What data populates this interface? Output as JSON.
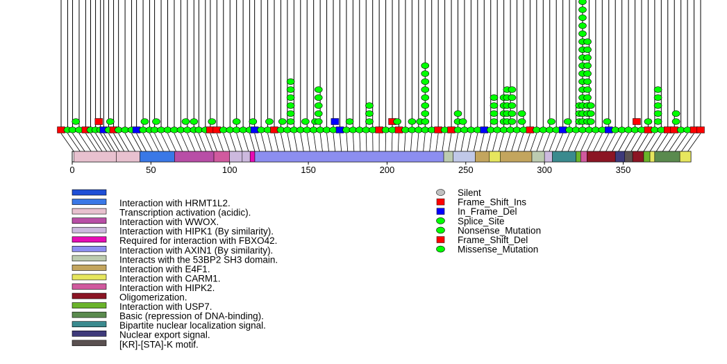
{
  "chart_data": {
    "type": "lollipop",
    "title": "",
    "xlabel": "",
    "ylabel": "",
    "xlim": [
      0,
      393
    ],
    "x_ticks": [
      0,
      50,
      100,
      150,
      200,
      250,
      300,
      350
    ],
    "mutation_types": [
      {
        "name": "Silent",
        "color": "#c0c0c0",
        "shape": "ellipse"
      },
      {
        "name": "Frame_Shift_Ins",
        "color": "#ff0000",
        "shape": "rect"
      },
      {
        "name": "In_Frame_Del",
        "color": "#0000ff",
        "shape": "rect"
      },
      {
        "name": "Splice_Site",
        "color": "#00ff00",
        "shape": "ellipse"
      },
      {
        "name": "Nonsense_Mutation",
        "color": "#00ff00",
        "shape": "ellipse"
      },
      {
        "name": "Frame_Shift_Del",
        "color": "#ff0000",
        "shape": "rect"
      },
      {
        "name": "Missense_Mutation",
        "color": "#00ff00",
        "shape": "ellipse"
      }
    ],
    "regions": [
      {
        "name": "Interaction with HRMT1L2.",
        "color": "#1f4fd6"
      },
      {
        "name": "Transcription activation (acidic).",
        "color": "#3a78e6"
      },
      {
        "name": "Interaction with WWOX.",
        "color": "#e8c1cf"
      },
      {
        "name": "Interaction with HIPK1 (By similarity).",
        "color": "#b84ea6"
      },
      {
        "name": "Required for interaction with FBXO42.",
        "color": "#ccb9de"
      },
      {
        "name": "Interaction with AXIN1 (By similarity).",
        "color": "#e60cb4"
      },
      {
        "name": "Interacts with the 53BP2 SH3 domain.",
        "color": "#8c8ef0"
      },
      {
        "name": "Interaction with E4F1.",
        "color": "#bccbb0"
      },
      {
        "name": "Interaction with CARM1.",
        "color": "#c3a55e"
      },
      {
        "name": "Interaction with HIPK2.",
        "color": "#e6e65e"
      },
      {
        "name": "Oligomerization.",
        "color": "#d05a9e"
      },
      {
        "name": "Interaction with USP7.",
        "color": "#8b1524"
      },
      {
        "name": "Basic (repression of DNA-binding).",
        "color": "#6ab32a"
      },
      {
        "name": "Bipartite nuclear localization signal.",
        "color": "#5a8a4e"
      },
      {
        "name": "Nuclear export signal.",
        "color": "#3a8a8e"
      },
      {
        "name": "[KR]-[STA]-K motif.",
        "color": "#3e3a7a"
      }
    ],
    "extra_region_colors": [
      "#5a5050"
    ],
    "domain_segments": [
      {
        "start": 1,
        "end": 28,
        "color": "#e8c1cf"
      },
      {
        "start": 28,
        "end": 43,
        "color": "#e8c1cf"
      },
      {
        "start": 43,
        "end": 65,
        "color": "#3a78e6"
      },
      {
        "start": 65,
        "end": 90,
        "color": "#b84ea6"
      },
      {
        "start": 90,
        "end": 100,
        "color": "#d05a9e"
      },
      {
        "start": 100,
        "end": 108,
        "color": "#ccb9de"
      },
      {
        "start": 108,
        "end": 113,
        "color": "#ccb9de"
      },
      {
        "start": 113,
        "end": 116,
        "color": "#e60cb4"
      },
      {
        "start": 116,
        "end": 236,
        "color": "#8c8ef0"
      },
      {
        "start": 236,
        "end": 242,
        "color": "#bccbb0"
      },
      {
        "start": 242,
        "end": 256,
        "color": "#c0c8e8"
      },
      {
        "start": 256,
        "end": 265,
        "color": "#c3a55e"
      },
      {
        "start": 265,
        "end": 272,
        "color": "#e6e65e"
      },
      {
        "start": 272,
        "end": 292,
        "color": "#c3a55e"
      },
      {
        "start": 292,
        "end": 300,
        "color": "#bccbb0"
      },
      {
        "start": 300,
        "end": 305,
        "color": "#ccb9de"
      },
      {
        "start": 305,
        "end": 320,
        "color": "#3a8a8e"
      },
      {
        "start": 320,
        "end": 323,
        "color": "#6ab32a"
      },
      {
        "start": 323,
        "end": 327,
        "color": "#d05a9e"
      },
      {
        "start": 327,
        "end": 345,
        "color": "#8b1524"
      },
      {
        "start": 345,
        "end": 351,
        "color": "#3e3a7a"
      },
      {
        "start": 351,
        "end": 356,
        "color": "#5a5050"
      },
      {
        "start": 356,
        "end": 363,
        "color": "#8b1524"
      },
      {
        "start": 363,
        "end": 367,
        "color": "#6ab32a"
      },
      {
        "start": 367,
        "end": 370,
        "color": "#e6e65e"
      },
      {
        "start": 370,
        "end": 386,
        "color": "#5a8a4e"
      },
      {
        "start": 386,
        "end": 393,
        "color": "#e6e65e"
      }
    ],
    "baseline_mutations": [
      {
        "pos": 1,
        "type": "Frame_Shift_Del"
      },
      {
        "pos": 5,
        "type": "Missense_Mutation"
      },
      {
        "pos": 8,
        "type": "Missense_Mutation"
      },
      {
        "pos": 12,
        "type": "Missense_Mutation"
      },
      {
        "pos": 16,
        "type": "Frame_Shift_Del"
      },
      {
        "pos": 19,
        "type": "Missense_Mutation"
      },
      {
        "pos": 22,
        "type": "Missense_Mutation"
      },
      {
        "pos": 25,
        "type": "Missense_Mutation"
      },
      {
        "pos": 27,
        "type": "In_Frame_Del"
      },
      {
        "pos": 30,
        "type": "Missense_Mutation"
      },
      {
        "pos": 33,
        "type": "Frame_Shift_Del"
      },
      {
        "pos": 36,
        "type": "Missense_Mutation"
      },
      {
        "pos": 40,
        "type": "Missense_Mutation"
      },
      {
        "pos": 44,
        "type": "Missense_Mutation"
      },
      {
        "pos": 47,
        "type": "In_Frame_Del"
      },
      {
        "pos": 51,
        "type": "Missense_Mutation"
      },
      {
        "pos": 55,
        "type": "Missense_Mutation"
      },
      {
        "pos": 58,
        "type": "Missense_Mutation"
      },
      {
        "pos": 62,
        "type": "Missense_Mutation"
      },
      {
        "pos": 66,
        "type": "Missense_Mutation"
      },
      {
        "pos": 70,
        "type": "Missense_Mutation"
      },
      {
        "pos": 74,
        "type": "Missense_Mutation"
      },
      {
        "pos": 78,
        "type": "Missense_Mutation"
      },
      {
        "pos": 82,
        "type": "Missense_Mutation"
      },
      {
        "pos": 85,
        "type": "Missense_Mutation"
      },
      {
        "pos": 89,
        "type": "Missense_Mutation"
      },
      {
        "pos": 92,
        "type": "Frame_Shift_Del"
      },
      {
        "pos": 96,
        "type": "Frame_Shift_Del"
      },
      {
        "pos": 100,
        "type": "Missense_Mutation"
      },
      {
        "pos": 104,
        "type": "Missense_Mutation"
      },
      {
        "pos": 108,
        "type": "Missense_Mutation"
      },
      {
        "pos": 112,
        "type": "Missense_Mutation"
      },
      {
        "pos": 116,
        "type": "Missense_Mutation"
      },
      {
        "pos": 119,
        "type": "In_Frame_Del"
      },
      {
        "pos": 123,
        "type": "Missense_Mutation"
      },
      {
        "pos": 127,
        "type": "Missense_Mutation"
      },
      {
        "pos": 131,
        "type": "Frame_Shift_Del"
      },
      {
        "pos": 135,
        "type": "Missense_Mutation"
      },
      {
        "pos": 139,
        "type": "Missense_Mutation"
      },
      {
        "pos": 143,
        "type": "Missense_Mutation"
      },
      {
        "pos": 147,
        "type": "Missense_Mutation"
      },
      {
        "pos": 151,
        "type": "Missense_Mutation"
      },
      {
        "pos": 155,
        "type": "Missense_Mutation"
      },
      {
        "pos": 159,
        "type": "Missense_Mutation"
      },
      {
        "pos": 163,
        "type": "Missense_Mutation"
      },
      {
        "pos": 167,
        "type": "Missense_Mutation"
      },
      {
        "pos": 171,
        "type": "In_Frame_Del"
      },
      {
        "pos": 175,
        "type": "Missense_Mutation"
      },
      {
        "pos": 179,
        "type": "Missense_Mutation"
      },
      {
        "pos": 183,
        "type": "Missense_Mutation"
      },
      {
        "pos": 187,
        "type": "Missense_Mutation"
      },
      {
        "pos": 191,
        "type": "Missense_Mutation"
      },
      {
        "pos": 195,
        "type": "Frame_Shift_Del"
      },
      {
        "pos": 199,
        "type": "Missense_Mutation"
      },
      {
        "pos": 203,
        "type": "Missense_Mutation"
      },
      {
        "pos": 207,
        "type": "Frame_Shift_Del"
      },
      {
        "pos": 211,
        "type": "Missense_Mutation"
      },
      {
        "pos": 215,
        "type": "Missense_Mutation"
      },
      {
        "pos": 219,
        "type": "Missense_Mutation"
      },
      {
        "pos": 223,
        "type": "Missense_Mutation"
      },
      {
        "pos": 227,
        "type": "Missense_Mutation"
      },
      {
        "pos": 231,
        "type": "Frame_Shift_Del"
      },
      {
        "pos": 235,
        "type": "Missense_Mutation"
      },
      {
        "pos": 239,
        "type": "Frame_Shift_Del"
      },
      {
        "pos": 243,
        "type": "Missense_Mutation"
      },
      {
        "pos": 247,
        "type": "Missense_Mutation"
      },
      {
        "pos": 251,
        "type": "Missense_Mutation"
      },
      {
        "pos": 255,
        "type": "Missense_Mutation"
      },
      {
        "pos": 259,
        "type": "In_Frame_Del"
      },
      {
        "pos": 263,
        "type": "Missense_Mutation"
      },
      {
        "pos": 267,
        "type": "Missense_Mutation"
      },
      {
        "pos": 271,
        "type": "Missense_Mutation"
      },
      {
        "pos": 275,
        "type": "Missense_Mutation"
      },
      {
        "pos": 279,
        "type": "Missense_Mutation"
      },
      {
        "pos": 283,
        "type": "Missense_Mutation"
      },
      {
        "pos": 287,
        "type": "Frame_Shift_Del"
      },
      {
        "pos": 291,
        "type": "Missense_Mutation"
      },
      {
        "pos": 295,
        "type": "Missense_Mutation"
      },
      {
        "pos": 299,
        "type": "Missense_Mutation"
      },
      {
        "pos": 303,
        "type": "Missense_Mutation"
      },
      {
        "pos": 307,
        "type": "In_Frame_Del"
      },
      {
        "pos": 311,
        "type": "Missense_Mutation"
      },
      {
        "pos": 315,
        "type": "Missense_Mutation"
      },
      {
        "pos": 319,
        "type": "Missense_Mutation"
      },
      {
        "pos": 323,
        "type": "Missense_Mutation"
      },
      {
        "pos": 327,
        "type": "Missense_Mutation"
      },
      {
        "pos": 331,
        "type": "Missense_Mutation"
      },
      {
        "pos": 335,
        "type": "In_Frame_Del"
      },
      {
        "pos": 339,
        "type": "Missense_Mutation"
      },
      {
        "pos": 343,
        "type": "Missense_Mutation"
      },
      {
        "pos": 347,
        "type": "Missense_Mutation"
      },
      {
        "pos": 351,
        "type": "Missense_Mutation"
      },
      {
        "pos": 355,
        "type": "Missense_Mutation"
      },
      {
        "pos": 359,
        "type": "Frame_Shift_Del"
      },
      {
        "pos": 363,
        "type": "Missense_Mutation"
      },
      {
        "pos": 367,
        "type": "Missense_Mutation"
      },
      {
        "pos": 371,
        "type": "Frame_Shift_Del"
      },
      {
        "pos": 375,
        "type": "Frame_Shift_Del"
      },
      {
        "pos": 379,
        "type": "Missense_Mutation"
      },
      {
        "pos": 383,
        "type": "Missense_Mutation"
      },
      {
        "pos": 387,
        "type": "Frame_Shift_Del"
      },
      {
        "pos": 391,
        "type": "Frame_Shift_Del"
      }
    ],
    "stacked_mutations": [
      {
        "pos": 10,
        "type": "Missense_Mutation",
        "count": 1
      },
      {
        "pos": 24,
        "type": "Frame_Shift_Del",
        "count": 1
      },
      {
        "pos": 31,
        "type": "Missense_Mutation",
        "count": 1
      },
      {
        "pos": 52,
        "type": "Missense_Mutation",
        "count": 1
      },
      {
        "pos": 59,
        "type": "Missense_Mutation",
        "count": 1
      },
      {
        "pos": 77,
        "type": "Missense_Mutation",
        "count": 1
      },
      {
        "pos": 82,
        "type": "Missense_Mutation",
        "count": 1
      },
      {
        "pos": 93,
        "type": "Missense_Mutation",
        "count": 1
      },
      {
        "pos": 108,
        "type": "Missense_Mutation",
        "count": 1
      },
      {
        "pos": 118,
        "type": "Missense_Mutation",
        "count": 1
      },
      {
        "pos": 128,
        "type": "Missense_Mutation",
        "count": 1
      },
      {
        "pos": 136,
        "type": "Missense_Mutation",
        "count": 1
      },
      {
        "pos": 141,
        "type": "Missense_Mutation",
        "count": 6
      },
      {
        "pos": 150,
        "type": "Missense_Mutation",
        "count": 1
      },
      {
        "pos": 156,
        "type": "Missense_Mutation",
        "count": 1
      },
      {
        "pos": 158,
        "type": "Missense_Mutation",
        "count": 5
      },
      {
        "pos": 168,
        "type": "In_Frame_Del",
        "count": 1
      },
      {
        "pos": 177,
        "type": "Missense_Mutation",
        "count": 1
      },
      {
        "pos": 189,
        "type": "Missense_Mutation",
        "count": 3
      },
      {
        "pos": 203,
        "type": "Frame_Shift_Del",
        "count": 1
      },
      {
        "pos": 206,
        "type": "Missense_Mutation",
        "count": 1
      },
      {
        "pos": 215,
        "type": "Missense_Mutation",
        "count": 1
      },
      {
        "pos": 220,
        "type": "Missense_Mutation",
        "count": 1
      },
      {
        "pos": 223,
        "type": "Missense_Mutation",
        "count": 8
      },
      {
        "pos": 243,
        "type": "Missense_Mutation",
        "count": 2
      },
      {
        "pos": 246,
        "type": "Missense_Mutation",
        "count": 1
      },
      {
        "pos": 265,
        "type": "Missense_Mutation",
        "count": 4
      },
      {
        "pos": 271,
        "type": "Missense_Mutation",
        "count": 4
      },
      {
        "pos": 273,
        "type": "Missense_Mutation",
        "count": 5
      },
      {
        "pos": 276,
        "type": "Missense_Mutation",
        "count": 5
      },
      {
        "pos": 282,
        "type": "Missense_Mutation",
        "count": 2
      },
      {
        "pos": 300,
        "type": "Missense_Mutation",
        "count": 1
      },
      {
        "pos": 310,
        "type": "Missense_Mutation",
        "count": 1
      },
      {
        "pos": 317,
        "type": "Missense_Mutation",
        "count": 3
      },
      {
        "pos": 319,
        "type": "Missense_Mutation",
        "count": 18
      },
      {
        "pos": 322,
        "type": "Missense_Mutation",
        "count": 11
      },
      {
        "pos": 324,
        "type": "Missense_Mutation",
        "count": 3
      },
      {
        "pos": 334,
        "type": "Missense_Mutation",
        "count": 1
      },
      {
        "pos": 352,
        "type": "Frame_Shift_Del",
        "count": 1
      },
      {
        "pos": 359,
        "type": "Missense_Mutation",
        "count": 1
      },
      {
        "pos": 365,
        "type": "Missense_Mutation",
        "count": 5
      },
      {
        "pos": 376,
        "type": "Missense_Mutation",
        "count": 2
      }
    ]
  }
}
